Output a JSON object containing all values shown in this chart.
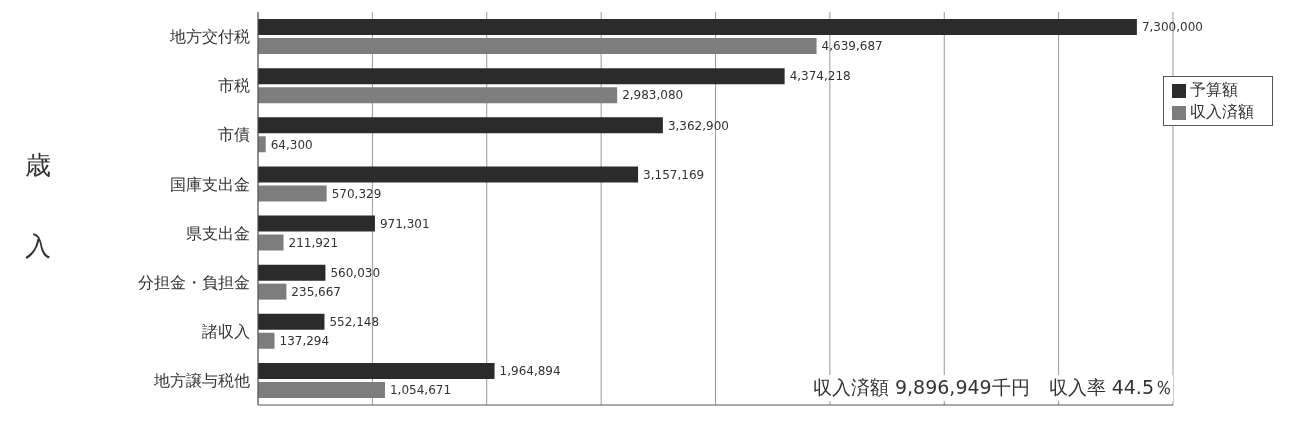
{
  "chart_data": {
    "type": "bar",
    "orientation": "horizontal",
    "ylabel": "歳入",
    "categories": [
      "地方交付税",
      "市税",
      "市債",
      "国庫支出金",
      "県支出金",
      "分担金・負担金",
      "諸収入",
      "地方譲与税他"
    ],
    "series": [
      {
        "name": "予算額",
        "color": "#2b2b2b",
        "values": [
          7300000,
          4374218,
          3362900,
          3157169,
          971301,
          560030,
          552148,
          1964894
        ],
        "value_labels": [
          "7,300,000",
          "4,374,218",
          "3,362,900",
          "3,157,169",
          "971,301",
          "560,030",
          "552,148",
          "1,964,894"
        ]
      },
      {
        "name": "収入済額",
        "color": "#7d7d7d",
        "values": [
          4639687,
          2983080,
          64300,
          570329,
          211921,
          235667,
          137294,
          1054671
        ],
        "value_labels": [
          "4,639,687",
          "2,983,080",
          "64,300",
          "570,329",
          "211,921",
          "235,667",
          "137,294",
          "1,054,671"
        ]
      }
    ],
    "grid": "x",
    "tick_labels": "y",
    "legend": "top right",
    "annotations": [
      "収入済額 9,896,949千円　収入率 44.5％"
    ]
  }
}
